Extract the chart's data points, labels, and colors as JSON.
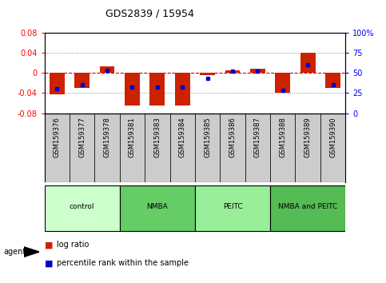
{
  "title": "GDS2839 / 15954",
  "samples": [
    "GSM159376",
    "GSM159377",
    "GSM159378",
    "GSM159381",
    "GSM159383",
    "GSM159384",
    "GSM159385",
    "GSM159386",
    "GSM159387",
    "GSM159388",
    "GSM159389",
    "GSM159390"
  ],
  "log_ratio": [
    -0.042,
    -0.03,
    0.013,
    -0.065,
    -0.065,
    -0.065,
    -0.005,
    0.005,
    0.008,
    -0.04,
    0.04,
    -0.03
  ],
  "percentile": [
    30,
    35,
    53,
    32,
    32,
    32,
    43,
    52,
    52,
    28,
    60,
    35
  ],
  "groups": [
    {
      "label": "control",
      "color": "#ccffcc",
      "start": 0,
      "end": 3
    },
    {
      "label": "NMBA",
      "color": "#66cc66",
      "start": 3,
      "end": 6
    },
    {
      "label": "PEITC",
      "color": "#99ee99",
      "start": 6,
      "end": 9
    },
    {
      "label": "NMBA and PEITC",
      "color": "#55bb55",
      "start": 9,
      "end": 12
    }
  ],
  "ylim": [
    -0.08,
    0.08
  ],
  "yticks_left": [
    -0.08,
    -0.04,
    0,
    0.04,
    0.08
  ],
  "yticks_right": [
    0,
    25,
    50,
    75,
    100
  ],
  "bar_color": "#cc2200",
  "dot_color": "#0000cc",
  "zero_line_color": "#cc0000",
  "bg_color": "#ffffff",
  "plot_bg_color": "#ffffff",
  "grid_color": "#888888",
  "sample_bg_color": "#cccccc"
}
